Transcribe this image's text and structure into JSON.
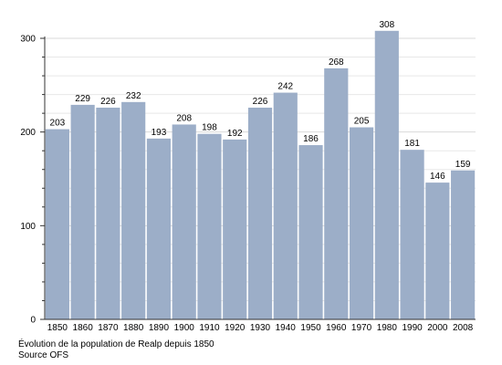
{
  "chart_data": {
    "type": "bar",
    "categories": [
      "1850",
      "1860",
      "1870",
      "1880",
      "1890",
      "1900",
      "1910",
      "1920",
      "1930",
      "1940",
      "1950",
      "1960",
      "1970",
      "1980",
      "1990",
      "2000",
      "2008"
    ],
    "values": [
      203,
      229,
      226,
      232,
      193,
      208,
      198,
      192,
      226,
      242,
      186,
      268,
      205,
      308,
      181,
      146,
      159
    ],
    "ylim": [
      0,
      300
    ],
    "yticks": [
      0,
      100,
      200,
      300
    ],
    "grid": true,
    "bar_color": "#9caec8",
    "grid_color": "#d9d9d9",
    "caption": "Évolution de la population de Realp depuis 1850",
    "source": "Source OFS"
  }
}
